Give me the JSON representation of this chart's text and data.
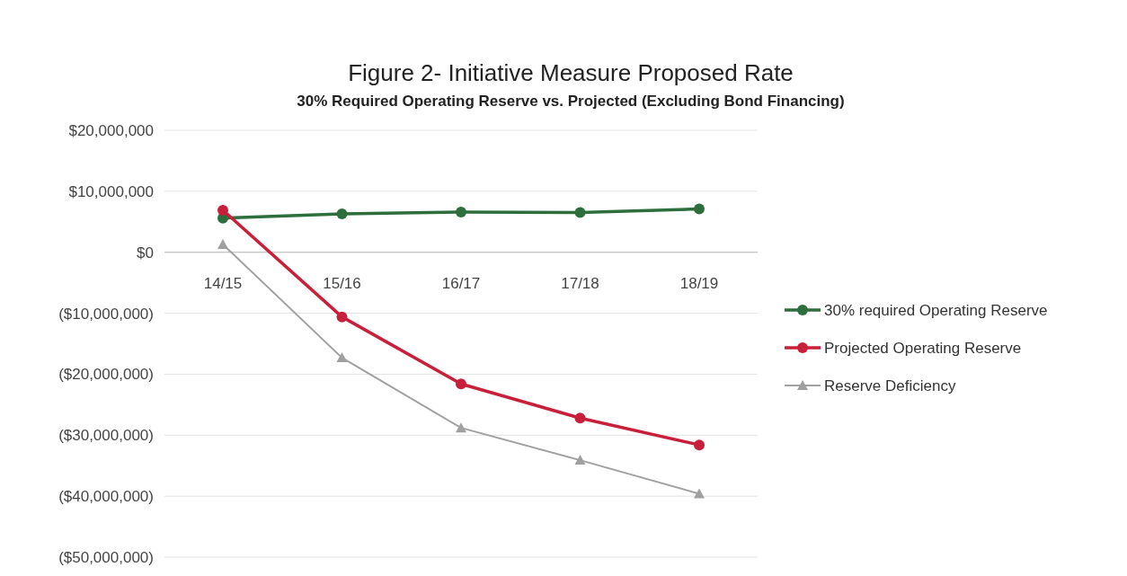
{
  "chart_data": {
    "type": "line",
    "title": "Figure 2- Initiative Measure Proposed Rate",
    "subtitle": "30% Required Operating Reserve vs. Projected (Excluding Bond Financing)",
    "categories": [
      "14/15",
      "15/16",
      "16/17",
      "17/18",
      "18/19"
    ],
    "series": [
      {
        "name": "30% required Operating Reserve",
        "color": "#2e6e3c",
        "marker": "circle",
        "values": [
          5600000,
          6300000,
          6600000,
          6500000,
          7100000
        ]
      },
      {
        "name": "Projected Operating Reserve",
        "color": "#c8203a",
        "marker": "circle",
        "values": [
          6900000,
          -10600000,
          -21600000,
          -27200000,
          -31600000
        ]
      },
      {
        "name": "Reserve Deficiency",
        "color": "#a0a0a0",
        "marker": "triangle",
        "values": [
          1300000,
          -17300000,
          -28800000,
          -34100000,
          -39600000
        ]
      }
    ],
    "ylim": [
      -50000000,
      20000000
    ],
    "yticks": [
      {
        "value": 20000000,
        "label": "$20,000,000"
      },
      {
        "value": 10000000,
        "label": "$10,000,000"
      },
      {
        "value": 0,
        "label": "$0"
      },
      {
        "value": -10000000,
        "label": "($10,000,000)"
      },
      {
        "value": -20000000,
        "label": "($20,000,000)"
      },
      {
        "value": -30000000,
        "label": "($30,000,000)"
      },
      {
        "value": -40000000,
        "label": "($40,000,000)"
      },
      {
        "value": -50000000,
        "label": "($50,000,000)"
      }
    ],
    "grid": "y",
    "legend": "right",
    "line_style": "solid"
  }
}
